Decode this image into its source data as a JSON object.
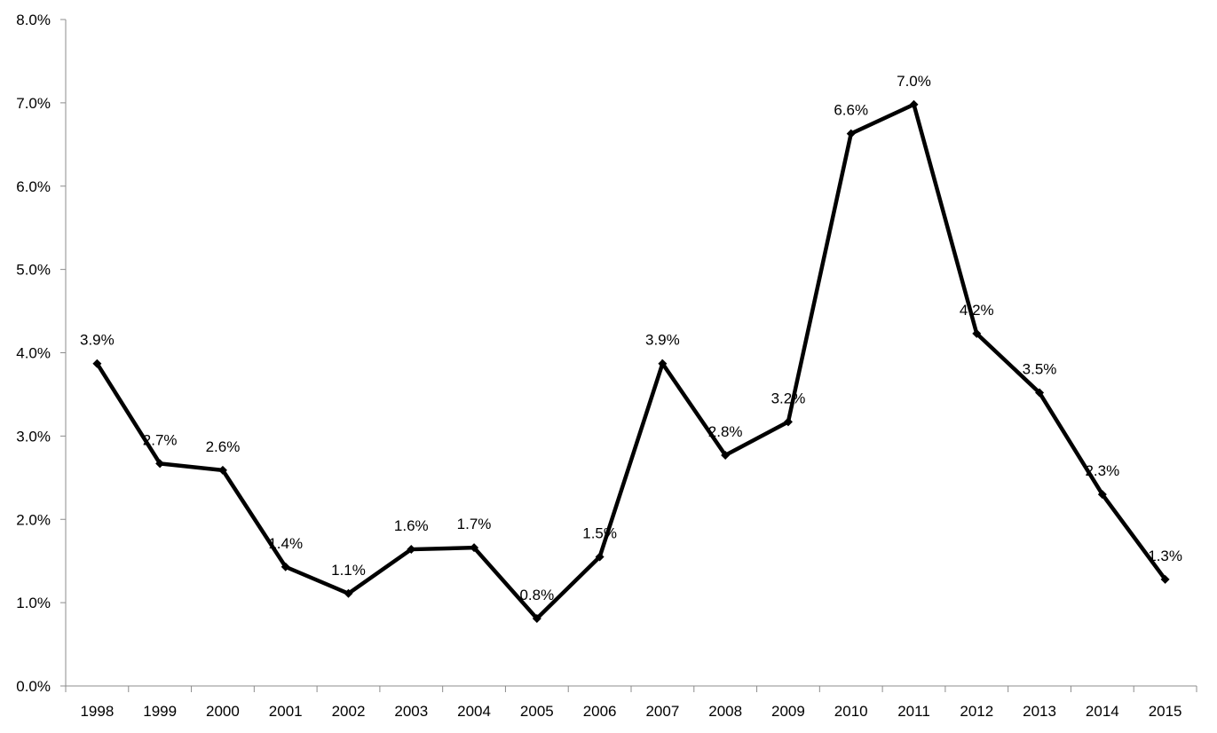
{
  "chart_data": {
    "type": "line",
    "title": "",
    "xlabel": "",
    "ylabel": "",
    "categories": [
      "1998",
      "1999",
      "2000",
      "2001",
      "2002",
      "2003",
      "2004",
      "2005",
      "2006",
      "2007",
      "2008",
      "2009",
      "2010",
      "2011",
      "2012",
      "2013",
      "2014",
      "2015"
    ],
    "series": [
      {
        "values": [
          3.87,
          2.67,
          2.59,
          1.43,
          1.11,
          1.64,
          1.66,
          0.81,
          1.55,
          3.87,
          2.77,
          3.17,
          6.63,
          6.98,
          4.23,
          3.52,
          2.3,
          1.28
        ],
        "labels": [
          "3.9%",
          "2.7%",
          "2.6%",
          "1.4%",
          "1.1%",
          "1.6%",
          "1.7%",
          "0.8%",
          "1.5%",
          "3.9%",
          "2.8%",
          "3.2%",
          "6.6%",
          "7.0%",
          "4.2%",
          "3.5%",
          "2.3%",
          "1.3%"
        ],
        "color": "#000000",
        "marker": "diamond"
      }
    ],
    "ylim": [
      0,
      8
    ],
    "yticks": [
      "0.0%",
      "1.0%",
      "2.0%",
      "3.0%",
      "4.0%",
      "5.0%",
      "6.0%",
      "7.0%",
      "8.0%"
    ],
    "grid": false,
    "legend": "none"
  }
}
